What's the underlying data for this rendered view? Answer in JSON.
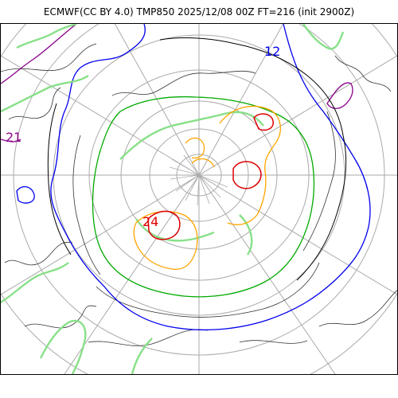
{
  "title": "ECMWF(CC BY 4.0) TMP850 2025/12/08 00Z FT=216 (init 2900Z)",
  "colors": {
    "grid": "#aaaaaa",
    "coast": "#000000",
    "isotherm_m24": "#dd0000",
    "isotherm_m18": "#ffa500",
    "isotherm_m12": "#88e088",
    "isotherm_m6": "#00aa00",
    "isotherm_0": "#0000ee",
    "isotherm_6": "#000000",
    "isotherm_12": "#880088",
    "minor": "#666666"
  },
  "contour_labels": [
    {
      "text": "12",
      "color": "#0000ee"
    },
    {
      "text": "21",
      "color": "#880088"
    },
    {
      "text": "24",
      "color": "#dd0000"
    }
  ]
}
